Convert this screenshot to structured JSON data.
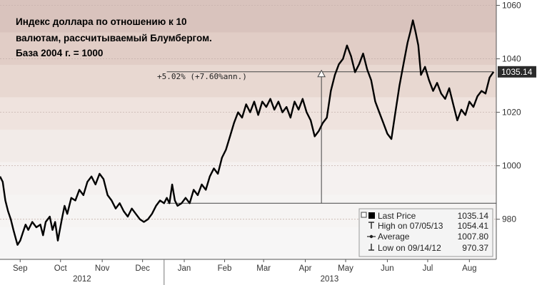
{
  "chart_data": {
    "type": "line",
    "title_lines": [
      "Индекс доллара по отношению к 10",
      "валютам, рассчитываемый Блумбергом.",
      "База 2004 г. = 1000"
    ],
    "xlabel": "",
    "ylabel": "",
    "ylim": [
      965,
      1062
    ],
    "y_ticks": [
      "980",
      "1000",
      "1020",
      "1040",
      "1060"
    ],
    "y_tick_values": [
      980,
      1000,
      1020,
      1040,
      1060
    ],
    "x_range": [
      "2012-09-01",
      "2013-09-05"
    ],
    "x_ticks": [
      {
        "label": "Sep",
        "date": "2012-09-16"
      },
      {
        "label": "Oct",
        "date": "2012-10-16"
      },
      {
        "label": "Nov",
        "date": "2012-11-16"
      },
      {
        "label": "Dec",
        "date": "2012-12-16"
      },
      {
        "label": "Jan",
        "date": "2013-01-16"
      },
      {
        "label": "Feb",
        "date": "2013-02-15"
      },
      {
        "label": "Mar",
        "date": "2013-03-16"
      },
      {
        "label": "Apr",
        "date": "2013-04-16"
      },
      {
        "label": "May",
        "date": "2013-05-16"
      },
      {
        "label": "Jun",
        "date": "2013-06-16"
      },
      {
        "label": "Jul",
        "date": "2013-07-16"
      },
      {
        "label": "Aug",
        "date": "2013-08-16"
      }
    ],
    "year_labels": [
      {
        "label": "2012",
        "date": "2012-11-01"
      },
      {
        "label": "2013",
        "date": "2013-05-04"
      }
    ],
    "series": [
      {
        "color": "#000000",
        "points": [
          [
            "2012-09-01",
            996
          ],
          [
            "2012-09-03",
            994
          ],
          [
            "2012-09-05",
            987
          ],
          [
            "2012-09-07",
            983
          ],
          [
            "2012-09-09",
            980
          ],
          [
            "2012-09-11",
            976
          ],
          [
            "2012-09-14",
            970.4
          ],
          [
            "2012-09-16",
            972
          ],
          [
            "2012-09-18",
            975
          ],
          [
            "2012-09-20",
            978
          ],
          [
            "2012-09-22",
            976
          ],
          [
            "2012-09-25",
            979
          ],
          [
            "2012-09-28",
            977
          ],
          [
            "2012-10-01",
            978
          ],
          [
            "2012-10-03",
            974
          ],
          [
            "2012-10-05",
            979
          ],
          [
            "2012-10-08",
            981
          ],
          [
            "2012-10-10",
            976
          ],
          [
            "2012-10-12",
            979
          ],
          [
            "2012-10-14",
            972
          ],
          [
            "2012-10-17",
            980
          ],
          [
            "2012-10-19",
            985
          ],
          [
            "2012-10-21",
            982
          ],
          [
            "2012-10-24",
            988
          ],
          [
            "2012-10-27",
            987
          ],
          [
            "2012-10-30",
            991
          ],
          [
            "2012-11-02",
            989
          ],
          [
            "2012-11-05",
            994
          ],
          [
            "2012-11-08",
            996
          ],
          [
            "2012-11-11",
            993
          ],
          [
            "2012-11-14",
            997
          ],
          [
            "2012-11-17",
            995
          ],
          [
            "2012-11-20",
            989
          ],
          [
            "2012-11-23",
            987
          ],
          [
            "2012-11-26",
            984
          ],
          [
            "2012-11-29",
            986
          ],
          [
            "2012-12-02",
            983
          ],
          [
            "2012-12-05",
            981
          ],
          [
            "2012-12-08",
            984
          ],
          [
            "2012-12-11",
            982
          ],
          [
            "2012-12-14",
            980
          ],
          [
            "2012-12-17",
            979
          ],
          [
            "2012-12-20",
            980
          ],
          [
            "2012-12-23",
            982
          ],
          [
            "2012-12-26",
            985
          ],
          [
            "2012-12-29",
            987
          ],
          [
            "2013-01-01",
            986
          ],
          [
            "2013-01-03",
            988
          ],
          [
            "2013-01-05",
            986
          ],
          [
            "2013-01-07",
            993
          ],
          [
            "2013-01-09",
            987
          ],
          [
            "2013-01-11",
            985
          ],
          [
            "2013-01-14",
            986
          ],
          [
            "2013-01-17",
            988
          ],
          [
            "2013-01-20",
            986
          ],
          [
            "2013-01-23",
            991
          ],
          [
            "2013-01-26",
            989
          ],
          [
            "2013-01-29",
            993
          ],
          [
            "2013-02-01",
            991
          ],
          [
            "2013-02-04",
            996
          ],
          [
            "2013-02-07",
            999
          ],
          [
            "2013-02-10",
            997
          ],
          [
            "2013-02-13",
            1003
          ],
          [
            "2013-02-16",
            1006
          ],
          [
            "2013-02-19",
            1011
          ],
          [
            "2013-02-22",
            1016
          ],
          [
            "2013-02-25",
            1020
          ],
          [
            "2013-02-28",
            1018
          ],
          [
            "2013-03-03",
            1023
          ],
          [
            "2013-03-06",
            1020
          ],
          [
            "2013-03-09",
            1024
          ],
          [
            "2013-03-12",
            1019
          ],
          [
            "2013-03-15",
            1024
          ],
          [
            "2013-03-18",
            1022
          ],
          [
            "2013-03-21",
            1025
          ],
          [
            "2013-03-24",
            1021
          ],
          [
            "2013-03-27",
            1024
          ],
          [
            "2013-03-30",
            1020
          ],
          [
            "2013-04-02",
            1022
          ],
          [
            "2013-04-05",
            1018
          ],
          [
            "2013-04-08",
            1024
          ],
          [
            "2013-04-11",
            1021
          ],
          [
            "2013-04-14",
            1025
          ],
          [
            "2013-04-17",
            1020
          ],
          [
            "2013-04-20",
            1017
          ],
          [
            "2013-04-23",
            1011
          ],
          [
            "2013-04-26",
            1013
          ],
          [
            "2013-04-29",
            1016
          ],
          [
            "2013-05-02",
            1018
          ],
          [
            "2013-05-05",
            1028
          ],
          [
            "2013-05-08",
            1034
          ],
          [
            "2013-05-11",
            1038
          ],
          [
            "2013-05-14",
            1040
          ],
          [
            "2013-05-17",
            1045
          ],
          [
            "2013-05-20",
            1041
          ],
          [
            "2013-05-23",
            1035
          ],
          [
            "2013-05-26",
            1038
          ],
          [
            "2013-05-29",
            1042
          ],
          [
            "2013-06-01",
            1036
          ],
          [
            "2013-06-04",
            1032
          ],
          [
            "2013-06-07",
            1024
          ],
          [
            "2013-06-10",
            1020
          ],
          [
            "2013-06-13",
            1016
          ],
          [
            "2013-06-16",
            1012
          ],
          [
            "2013-06-19",
            1010
          ],
          [
            "2013-06-22",
            1020
          ],
          [
            "2013-06-25",
            1030
          ],
          [
            "2013-06-28",
            1038
          ],
          [
            "2013-07-01",
            1046
          ],
          [
            "2013-07-03",
            1050
          ],
          [
            "2013-07-05",
            1054.4
          ],
          [
            "2013-07-07",
            1050
          ],
          [
            "2013-07-09",
            1045
          ],
          [
            "2013-07-11",
            1034
          ],
          [
            "2013-07-14",
            1037
          ],
          [
            "2013-07-17",
            1032
          ],
          [
            "2013-07-20",
            1028
          ],
          [
            "2013-07-23",
            1031
          ],
          [
            "2013-07-26",
            1027
          ],
          [
            "2013-07-29",
            1025
          ],
          [
            "2013-08-01",
            1029
          ],
          [
            "2013-08-04",
            1023
          ],
          [
            "2013-08-07",
            1017
          ],
          [
            "2013-08-10",
            1021
          ],
          [
            "2013-08-13",
            1019
          ],
          [
            "2013-08-16",
            1024
          ],
          [
            "2013-08-19",
            1022
          ],
          [
            "2013-08-22",
            1026
          ],
          [
            "2013-08-25",
            1028
          ],
          [
            "2013-08-28",
            1027
          ],
          [
            "2013-08-31",
            1033
          ],
          [
            "2013-09-03",
            1035.14
          ]
        ]
      }
    ],
    "reference_lines": [
      {
        "y": 986,
        "x_from": "2013-01-03",
        "x_to": "2013-09-05"
      },
      {
        "y": 1035.14,
        "x_from": "2013-01-03",
        "x_to": "2013-09-03"
      }
    ],
    "change_arrow": {
      "date": "2013-04-28",
      "y_from": 986,
      "y_to": 1035.14
    },
    "annotation": "+5.02% (+7.60%ann.)",
    "last_price_tag": "1035.14",
    "legend": {
      "rows": [
        {
          "label": "Last Price",
          "value": "1035.14"
        },
        {
          "label": "High on 07/05/13",
          "value": "1054.41"
        },
        {
          "label": "Average",
          "value": "1007.80"
        },
        {
          "label": "Low on 09/14/12",
          "value": "970.37"
        }
      ]
    },
    "grid": true,
    "legend_position": "bottom-right"
  }
}
